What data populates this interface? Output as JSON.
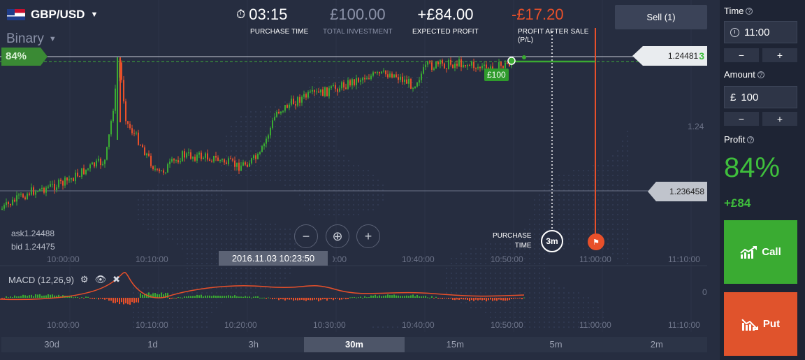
{
  "asset": {
    "pair": "GBP/USD",
    "mode": "Binary"
  },
  "header": {
    "timer": "03:15",
    "timer_label": "PURCHASE TIME",
    "investment": "£100.00",
    "investment_label": "TOTAL INVESTMENT",
    "expected": "+£84.00",
    "expected_label": "EXPECTED PROFIT",
    "after_sale": "-£17.20",
    "after_sale_label": "PROFIT AFTER SALE",
    "after_sale_sub": "(P/L)",
    "sell_label": "Sell (1)"
  },
  "chart": {
    "payout_badge": "84%",
    "current_price": "1.24481",
    "current_price_tail": "3",
    "level_price": "1.236458",
    "axis_tick": "1.24",
    "bet_badge": "£100",
    "ask": "ask1.24488",
    "bid": "bid 1.24475",
    "purchase_line1": "PURCHASE",
    "purchase_line2": "TIME",
    "expiry_badge": "3m",
    "hover_time": "2016.11.03 10:23:50",
    "time_ticks": [
      "10:00:00",
      "10:10:00",
      "10:20:00",
      "10:30:00",
      "10:40:00",
      "10:50:00",
      "11:00:00",
      "11:10:00"
    ],
    "indicator": "MACD (12,26,9)",
    "indicator_zero": "0"
  },
  "timeframes": [
    "30d",
    "1d",
    "3h",
    "30m",
    "15m",
    "5m",
    "2m"
  ],
  "timeframe_active": "30m",
  "panel": {
    "time_label": "Time",
    "time_value": "11:00",
    "amount_label": "Amount",
    "currency": "£",
    "amount_value": "100",
    "minus": "−",
    "plus": "+",
    "profit_label": "Profit",
    "profit_pct": "84%",
    "profit_amount": "+£84",
    "call_label": "Call",
    "put_label": "Put"
  },
  "colors": {
    "up": "#3aab32",
    "down": "#e8502a",
    "bg": "#262d40",
    "panel": "#1e2434"
  }
}
